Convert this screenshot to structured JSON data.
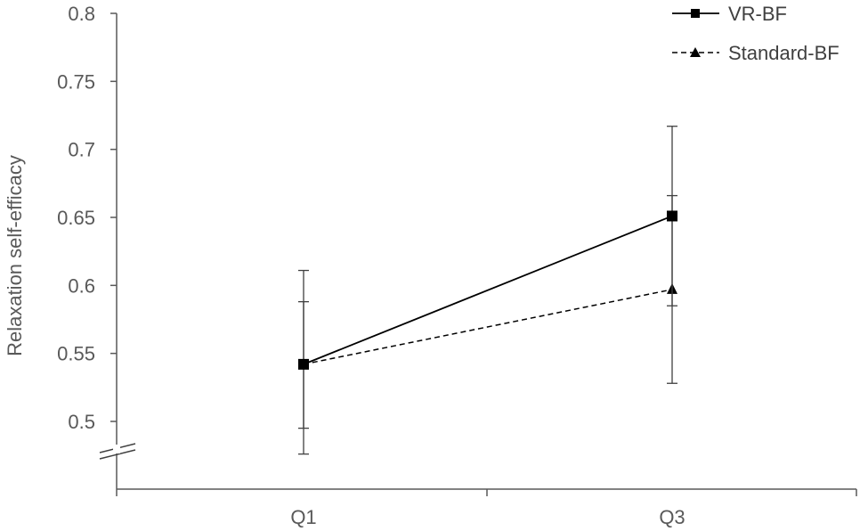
{
  "chart_data": {
    "type": "line",
    "categories": [
      "Q1",
      "Q3"
    ],
    "ylabel": "Relaxation self-efficacy",
    "xlabel": "",
    "ylim": [
      0.5,
      0.8
    ],
    "yticks": [
      "0.5",
      "0.55",
      "0.6",
      "0.65",
      "0.7",
      "0.75",
      "0.8"
    ],
    "ytick_values": [
      0.5,
      0.55,
      0.6,
      0.65,
      0.7,
      0.75,
      0.8
    ],
    "axis_break": true,
    "grid": false,
    "legend_position": "top-right",
    "series": [
      {
        "name": "VR-BF",
        "marker": "square",
        "line": "solid",
        "color": "#000000",
        "values": [
          0.542,
          0.651
        ],
        "error_low": [
          0.495,
          0.585
        ],
        "error_high": [
          0.588,
          0.717
        ]
      },
      {
        "name": "Standard-BF",
        "marker": "triangle",
        "line": "dashed",
        "color": "#000000",
        "values": [
          0.542,
          0.597
        ],
        "error_low": [
          0.476,
          0.528
        ],
        "error_high": [
          0.611,
          0.666
        ]
      }
    ]
  }
}
